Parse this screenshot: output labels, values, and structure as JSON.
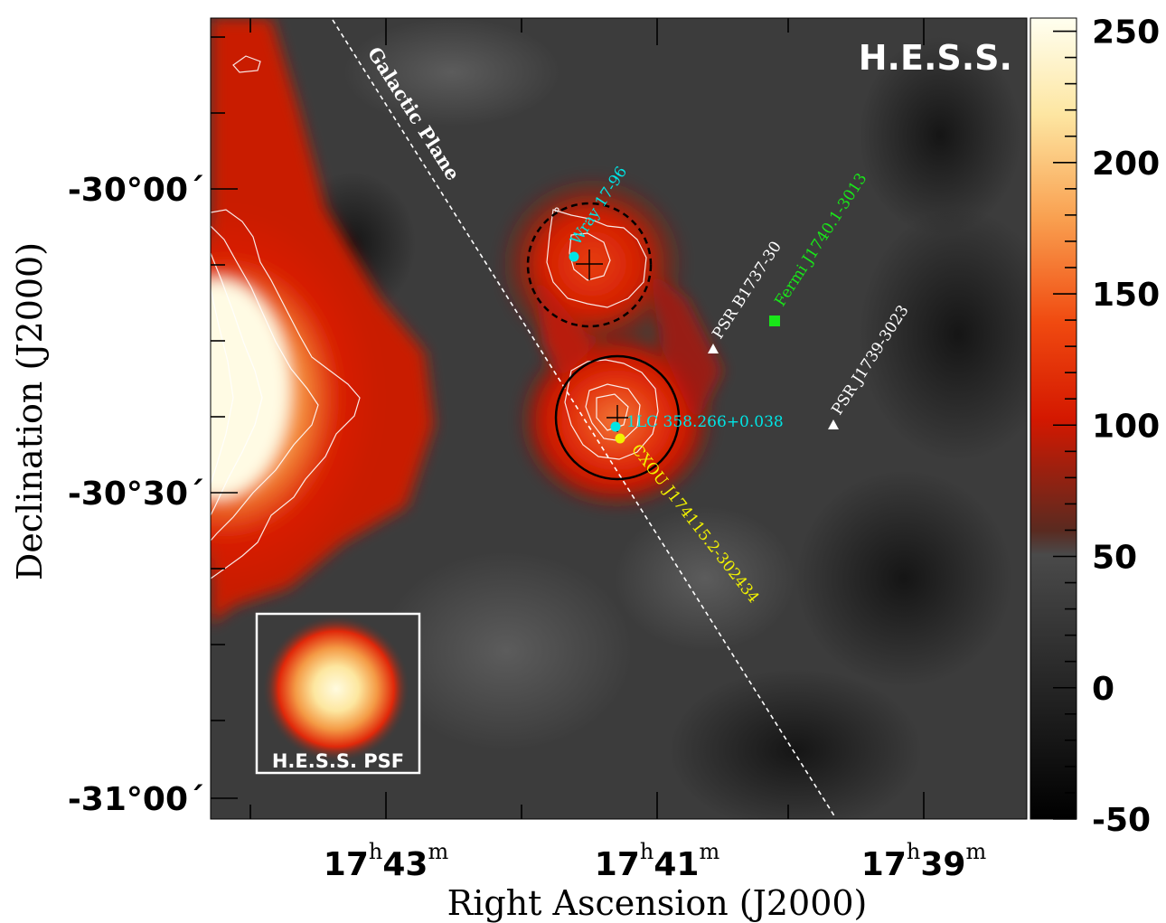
{
  "chart_data": {
    "type": "heatmap",
    "title": "H.E.S.S.",
    "xlabel": "Right Ascension (J2000)",
    "ylabel": "Declination (J2000)",
    "x_ticks": [
      {
        "h": "17",
        "m": "43"
      },
      {
        "h": "17",
        "m": "41"
      },
      {
        "h": "17",
        "m": "39"
      }
    ],
    "y_ticks": [
      "-30°00´",
      "-30°30´",
      "-31°00´"
    ],
    "colorbar": {
      "ticks": [
        "250",
        "200",
        "150",
        "100",
        "50",
        "0",
        "-50"
      ],
      "range": [
        -50,
        255
      ]
    },
    "psf_label": "H.E.S.S. PSF",
    "galactic_plane_label": "Galactic Plane",
    "sources": [
      {
        "name": "Wray 17-96",
        "marker": "circle",
        "color": "#00e5e5"
      },
      {
        "name": "1LC 358.266+0.038",
        "marker": "circle",
        "color": "#00e5e5"
      },
      {
        "name": "CXOU J174115.2-302434",
        "marker": "circle",
        "color": "#f2f200"
      },
      {
        "name": "Fermi J1740.1-3013",
        "marker": "square",
        "color": "#19e619"
      },
      {
        "name": "PSR B1737-30",
        "marker": "triangle",
        "color": "#ffffff"
      },
      {
        "name": "PSR J1739-3023",
        "marker": "triangle",
        "color": "#ffffff"
      }
    ]
  }
}
